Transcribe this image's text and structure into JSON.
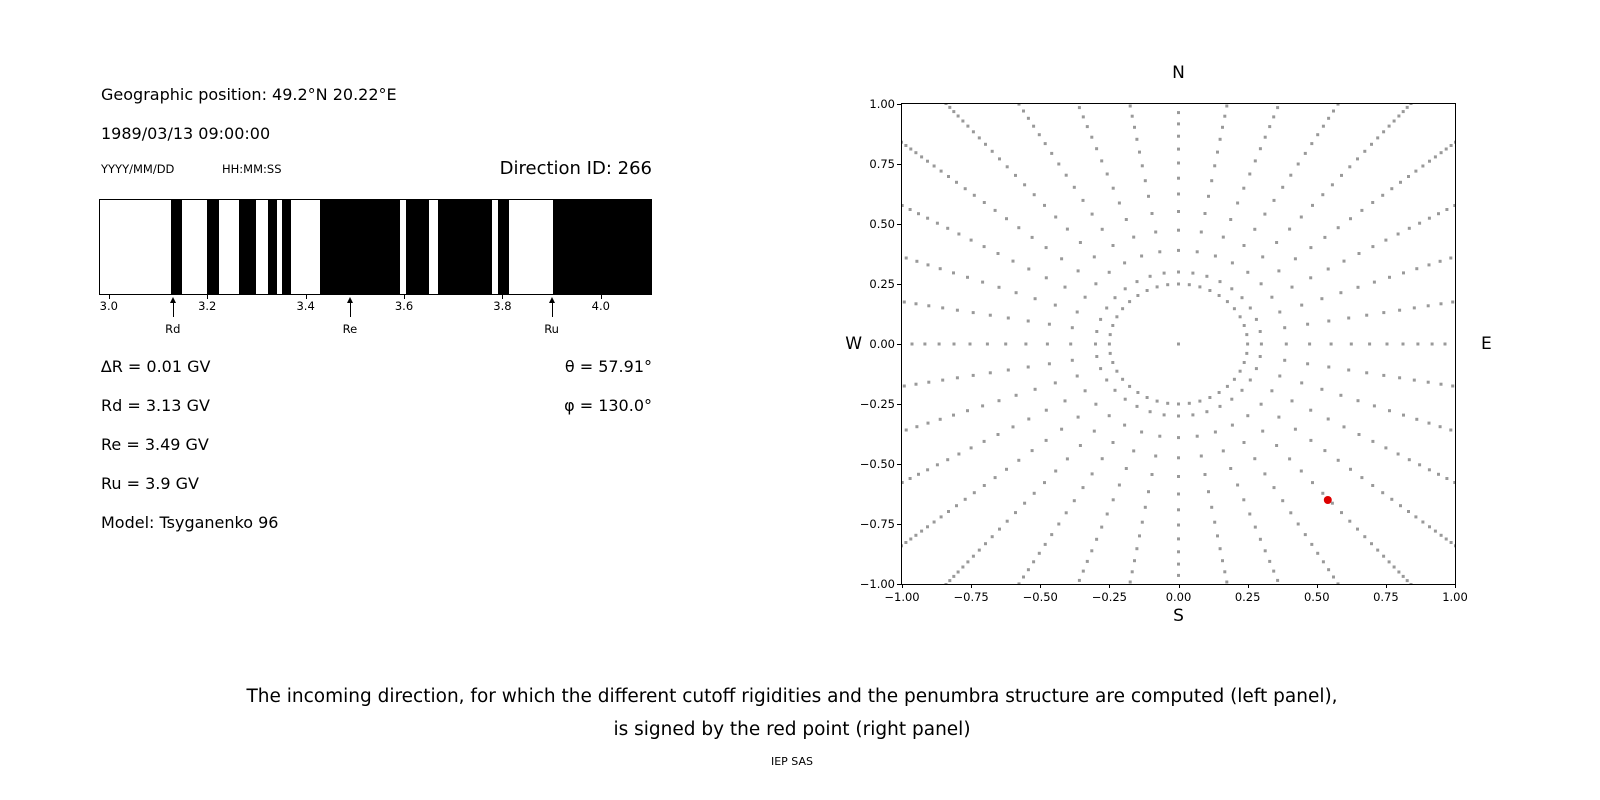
{
  "colors": {
    "band": "#000000",
    "grid_dot": "#999999",
    "red_point": "#dd0000",
    "text": "#000000"
  },
  "left_panel": {
    "geo_position": "Geographic position: 49.2°N 20.22°E",
    "datetime": "1989/03/13 09:00:00",
    "date_format_label": "YYYY/MM/DD",
    "time_format_label": "HH:MM:SS",
    "direction_id": "Direction ID: 266",
    "delta_r": "∆R = 0.01 GV",
    "rd": "Rd = 3.13 GV",
    "re": "Re = 3.49 GV",
    "ru": "Ru = 3.9 GV",
    "model": "Model: Tsyganenko 96",
    "theta": "θ = 57.91°",
    "phi": "φ = 130.0°"
  },
  "caption": {
    "line1": "The incoming direction, for which the different cutoff rigidities and the penumbra structure are computed (left panel),",
    "line2": "is signed by the red point (right panel)",
    "credit": "IEP SAS"
  },
  "chart_data": [
    {
      "type": "bar",
      "name": "penumbra-structure",
      "title": "",
      "xlabel": "",
      "ylabel": "",
      "xlim": [
        2.98,
        4.1
      ],
      "xticks": [
        3.0,
        3.2,
        3.4,
        3.6,
        3.8,
        4.0
      ],
      "xtick_labels": [
        "3.0",
        "3.2",
        "3.4",
        "3.6",
        "3.8",
        "4.0"
      ],
      "bands_gv": [
        [
          3.125,
          3.147
        ],
        [
          3.198,
          3.222
        ],
        [
          3.263,
          3.297
        ],
        [
          3.322,
          3.34
        ],
        [
          3.349,
          3.368
        ],
        [
          3.428,
          3.59
        ],
        [
          3.603,
          3.648
        ],
        [
          3.668,
          3.777
        ],
        [
          3.788,
          3.812
        ],
        [
          3.9,
          4.1
        ]
      ],
      "markers": [
        {
          "label": "Rd",
          "value_gv": 3.13
        },
        {
          "label": "Re",
          "value_gv": 3.49
        },
        {
          "label": "Ru",
          "value_gv": 3.9
        }
      ]
    },
    {
      "type": "scatter",
      "name": "incoming-directions",
      "title": "",
      "xlim": [
        -1,
        1
      ],
      "ylim": [
        -1,
        1
      ],
      "xticks": [
        -1,
        -0.75,
        -0.5,
        -0.25,
        0,
        0.25,
        0.5,
        0.75,
        1
      ],
      "yticks": [
        -1,
        -0.75,
        -0.5,
        -0.25,
        0,
        0.25,
        0.5,
        0.75,
        1
      ],
      "tick_decimals": 2,
      "compass_labels": {
        "top": "N",
        "bottom": "S",
        "left": "W",
        "right": "E"
      },
      "grid": {
        "center_dot": true,
        "ring_radius": 0.25,
        "ring_dot_count": 40,
        "spoke_azimuth_step_deg": 10,
        "spoke_radii": [
          0.3,
          0.39,
          0.474,
          0.552,
          0.625,
          0.691,
          0.754,
          0.812,
          0.866,
          0.917,
          0.964,
          1.007,
          1.048,
          1.086,
          1.121,
          1.154,
          1.185,
          1.213,
          1.24,
          1.264,
          1.287,
          1.308,
          1.328,
          1.346,
          1.363,
          1.379
        ],
        "clip_abs": 1.01
      },
      "red_point": {
        "x": 0.54,
        "y": -0.65
      }
    }
  ]
}
